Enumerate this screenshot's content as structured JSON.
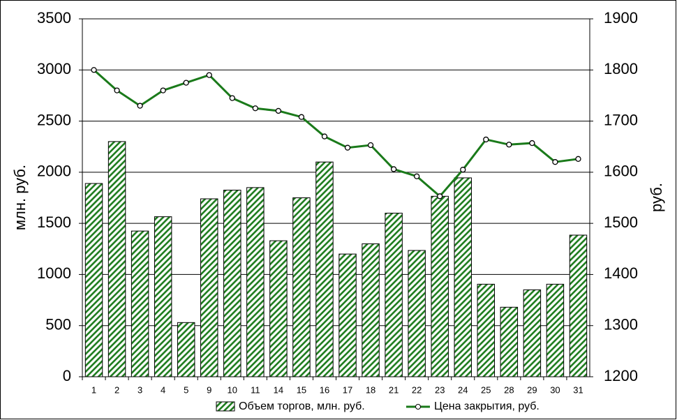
{
  "chart_data": {
    "type": "bar_line",
    "categories": [
      "1",
      "2",
      "3",
      "4",
      "5",
      "9",
      "10",
      "11",
      "14",
      "15",
      "16",
      "17",
      "18",
      "21",
      "22",
      "23",
      "24",
      "25",
      "28",
      "29",
      "30",
      "31"
    ],
    "ylabel": "млн. руб.",
    "y2label": "руб.",
    "ylim": [
      0,
      3500
    ],
    "yticks": [
      0,
      500,
      1000,
      1500,
      2000,
      2500,
      3000,
      3500
    ],
    "y2lim": [
      1200,
      1900
    ],
    "y2ticks": [
      1200,
      1300,
      1400,
      1500,
      1600,
      1700,
      1800,
      1900
    ],
    "grid": true,
    "legend": "bottom",
    "series": [
      {
        "name": "Объем торгов, млн. руб.",
        "type": "bar",
        "color": "#1a7a1a",
        "values": [
          1890,
          2300,
          1425,
          1565,
          530,
          1740,
          1825,
          1850,
          1330,
          1750,
          2100,
          1200,
          1300,
          1600,
          1235,
          1765,
          1945,
          905,
          680,
          850,
          905,
          1385
        ]
      },
      {
        "name": "Цена закрытия, руб.",
        "type": "line",
        "axis": "y2",
        "color": "#1a7a1a",
        "values": [
          1800,
          1760,
          1730,
          1760,
          1775,
          1790,
          1745,
          1725,
          1720,
          1708,
          1670,
          1648,
          1653,
          1606,
          1592,
          1553,
          1605,
          1664,
          1654,
          1657,
          1620,
          1626
        ]
      }
    ]
  }
}
